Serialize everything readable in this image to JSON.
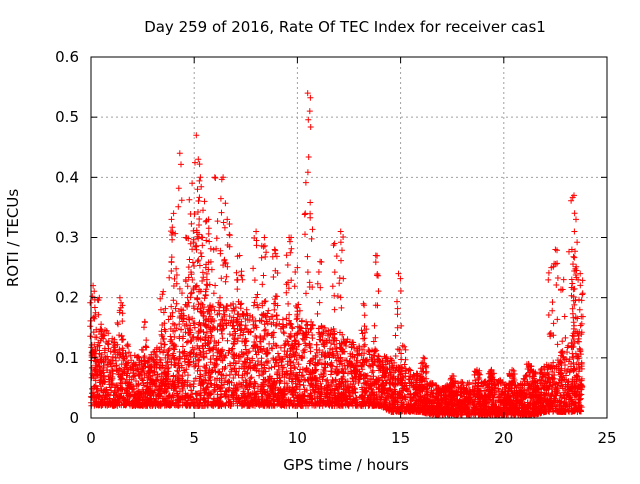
{
  "chart_data": {
    "type": "scatter",
    "title": "Day 259 of 2016, Rate Of TEC Index for receiver cas1",
    "xlabel": "GPS time / hours",
    "ylabel": "ROTI / TECUs",
    "xlim": [
      0,
      25
    ],
    "ylim": [
      0,
      0.6
    ],
    "x_ticks": [
      0,
      5,
      10,
      15,
      20,
      25
    ],
    "x_tick_labels": [
      "0",
      "5",
      "10",
      "15",
      "20",
      "25"
    ],
    "y_ticks": [
      0,
      0.1,
      0.2,
      0.3,
      0.4,
      0.5,
      0.6
    ],
    "y_tick_labels": [
      "0",
      "0.1",
      "0.2",
      "0.3",
      "0.4",
      "0.5",
      "0.6"
    ],
    "grid": true,
    "marker": "+",
    "series": [
      {
        "name": "cas1",
        "color": "#ff0000",
        "envelope": {
          "x": [
            0,
            0.5,
            1,
            1.5,
            2,
            2.5,
            3,
            3.5,
            4,
            4.5,
            5,
            5.5,
            6,
            6.5,
            7,
            7.5,
            8,
            8.5,
            9,
            9.5,
            10,
            10.5,
            11,
            11.5,
            12,
            12.5,
            13,
            13.5,
            14,
            14.5,
            15,
            15.5,
            16,
            16.5,
            17,
            17.5,
            18,
            18.5,
            19,
            19.5,
            20,
            20.5,
            21,
            21.5,
            22,
            22.5,
            23,
            23.5,
            23.8
          ],
          "low": [
            0.02,
            0.02,
            0.02,
            0.02,
            0.02,
            0.02,
            0.02,
            0.02,
            0.02,
            0.02,
            0.02,
            0.02,
            0.02,
            0.02,
            0.02,
            0.02,
            0.02,
            0.02,
            0.02,
            0.02,
            0.02,
            0.02,
            0.02,
            0.02,
            0.02,
            0.02,
            0.02,
            0.02,
            0.02,
            0.01,
            0.01,
            0.01,
            0.01,
            0.005,
            0.005,
            0.005,
            0.005,
            0.005,
            0.005,
            0.005,
            0.005,
            0.005,
            0.005,
            0.005,
            0.01,
            0.01,
            0.01,
            0.01,
            0.01
          ],
          "high": [
            0.13,
            0.15,
            0.14,
            0.14,
            0.11,
            0.1,
            0.11,
            0.13,
            0.16,
            0.2,
            0.22,
            0.22,
            0.2,
            0.2,
            0.19,
            0.18,
            0.19,
            0.18,
            0.18,
            0.17,
            0.17,
            0.16,
            0.16,
            0.15,
            0.14,
            0.13,
            0.12,
            0.12,
            0.11,
            0.1,
            0.09,
            0.08,
            0.07,
            0.06,
            0.05,
            0.06,
            0.06,
            0.06,
            0.06,
            0.07,
            0.06,
            0.06,
            0.07,
            0.08,
            0.09,
            0.1,
            0.12,
            0.15,
            0.15
          ]
        },
        "peaks": [
          {
            "x": 0.1,
            "y": 0.22
          },
          {
            "x": 0.4,
            "y": 0.2
          },
          {
            "x": 1.4,
            "y": 0.2
          },
          {
            "x": 2.6,
            "y": 0.16
          },
          {
            "x": 3.5,
            "y": 0.21
          },
          {
            "x": 3.9,
            "y": 0.33
          },
          {
            "x": 4.0,
            "y": 0.34
          },
          {
            "x": 4.3,
            "y": 0.44
          },
          {
            "x": 4.6,
            "y": 0.3
          },
          {
            "x": 4.9,
            "y": 0.39
          },
          {
            "x": 5.1,
            "y": 0.47
          },
          {
            "x": 5.2,
            "y": 0.43
          },
          {
            "x": 5.3,
            "y": 0.4
          },
          {
            "x": 5.5,
            "y": 0.36
          },
          {
            "x": 5.7,
            "y": 0.33
          },
          {
            "x": 6.0,
            "y": 0.4
          },
          {
            "x": 6.4,
            "y": 0.4
          },
          {
            "x": 6.6,
            "y": 0.33
          },
          {
            "x": 7.2,
            "y": 0.27
          },
          {
            "x": 8.0,
            "y": 0.31
          },
          {
            "x": 8.4,
            "y": 0.3
          },
          {
            "x": 8.9,
            "y": 0.28
          },
          {
            "x": 9.6,
            "y": 0.3
          },
          {
            "x": 10.0,
            "y": 0.25
          },
          {
            "x": 10.5,
            "y": 0.54
          },
          {
            "x": 10.6,
            "y": 0.51
          },
          {
            "x": 11.1,
            "y": 0.26
          },
          {
            "x": 11.8,
            "y": 0.29
          },
          {
            "x": 12.1,
            "y": 0.31
          },
          {
            "x": 13.2,
            "y": 0.19
          },
          {
            "x": 13.8,
            "y": 0.27
          },
          {
            "x": 14.9,
            "y": 0.24
          },
          {
            "x": 15.1,
            "y": 0.12
          },
          {
            "x": 16.1,
            "y": 0.1
          },
          {
            "x": 17.5,
            "y": 0.07
          },
          {
            "x": 18.7,
            "y": 0.08
          },
          {
            "x": 19.4,
            "y": 0.08
          },
          {
            "x": 20.4,
            "y": 0.08
          },
          {
            "x": 21.2,
            "y": 0.09
          },
          {
            "x": 22.3,
            "y": 0.25
          },
          {
            "x": 22.5,
            "y": 0.28
          },
          {
            "x": 22.9,
            "y": 0.23
          },
          {
            "x": 23.3,
            "y": 0.28
          },
          {
            "x": 23.4,
            "y": 0.37
          },
          {
            "x": 23.5,
            "y": 0.33
          },
          {
            "x": 23.7,
            "y": 0.24
          }
        ],
        "points_rendered": 5200
      }
    ]
  }
}
